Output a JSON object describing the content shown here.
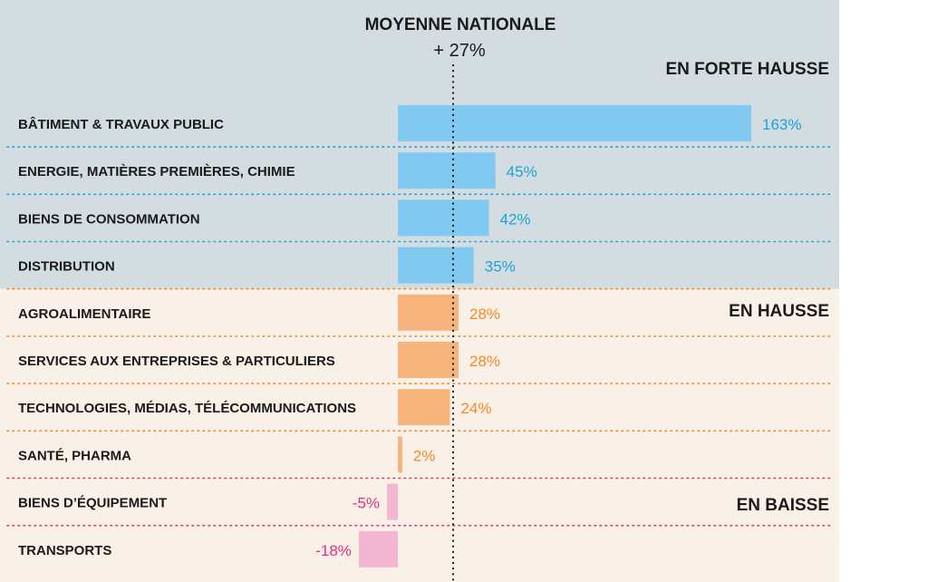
{
  "chart_data": {
    "type": "bar",
    "orientation": "horizontal",
    "unit": "%",
    "reference": {
      "label": "MOYENNE NATIONALE",
      "value_label": "+ 27%",
      "value": 27
    },
    "groups": [
      {
        "label": "EN FORTE HAUSSE",
        "color": "#82C9F1",
        "background": "#D3DCE1",
        "label_color": "#1BA3D8",
        "divider_color": "#1BA3D8"
      },
      {
        "label": "EN HAUSSE",
        "color": "#F6B37C",
        "background": "#F9F0E8",
        "label_color": "#F08A28",
        "divider_color": "#F08A28"
      },
      {
        "label": "EN BAISSE",
        "color": "#F3B6D0",
        "background": "#F9F0E8",
        "label_color": "#E3307A",
        "divider_color": "#E3307A"
      }
    ],
    "categories": [
      "BÂTIMENT & TRAVAUX PUBLIC",
      "ENERGIE, MATIÈRES PREMIÈRES, CHIMIE",
      "BIENS DE CONSOMMATION",
      "DISTRIBUTION",
      "AGROALIMENTAIRE",
      "SERVICES AUX  ENTREPRISES & PARTICULIERS",
      "TECHNOLOGIES, MÉDIAS, TÉLÉCOMMUNICATIONS",
      "SANTÉ, PHARMA",
      "BIENS D’ÉQUIPEMENT",
      "TRANSPORTS"
    ],
    "values": [
      163,
      45,
      42,
      35,
      28,
      28,
      24,
      2,
      -5,
      -18
    ],
    "value_labels": [
      "163%",
      "45%",
      "42%",
      "35%",
      "28%",
      "28%",
      "24%",
      "2%",
      "-5%",
      "-18%"
    ],
    "group_index": [
      0,
      0,
      0,
      0,
      1,
      1,
      1,
      1,
      2,
      2
    ]
  }
}
